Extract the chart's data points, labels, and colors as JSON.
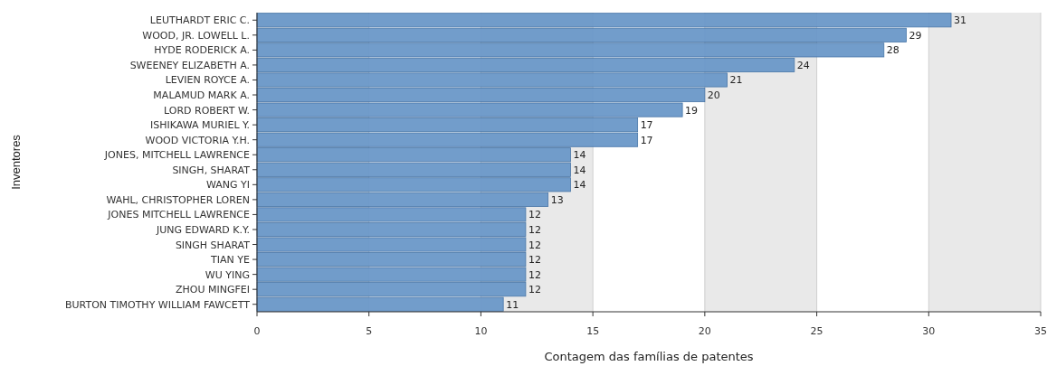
{
  "chart_data": {
    "type": "bar",
    "orientation": "horizontal",
    "xlabel": "Contagem das famílias de patentes",
    "ylabel": "Inventores",
    "categories": [
      "LEUTHARDT ERIC C.",
      "WOOD, JR. LOWELL L.",
      "HYDE RODERICK A.",
      "SWEENEY ELIZABETH A.",
      "LEVIEN ROYCE A.",
      "MALAMUD MARK A.",
      "LORD ROBERT W.",
      "ISHIKAWA MURIEL Y.",
      "WOOD VICTORIA Y.H.",
      "JONES, MITCHELL LAWRENCE",
      "SINGH, SHARAT",
      "WANG YI",
      "WAHL, CHRISTOPHER LOREN",
      "JONES MITCHELL LAWRENCE",
      "JUNG EDWARD K.Y.",
      "SINGH SHARAT",
      "TIAN YE",
      "WU YING",
      "ZHOU MINGFEI",
      "BURTON TIMOTHY WILLIAM FAWCETT"
    ],
    "values": [
      31,
      29,
      28,
      24,
      21,
      20,
      19,
      17,
      17,
      14,
      14,
      14,
      13,
      12,
      12,
      12,
      12,
      12,
      12,
      11
    ],
    "color": "#6b98c9",
    "xlim": [
      0,
      35
    ],
    "xticks": [
      0,
      5,
      10,
      15,
      20,
      25,
      30,
      35
    ],
    "grid": "x",
    "data_labels": true,
    "bands": [
      {
        "axis": "x",
        "from": 0,
        "to": 5,
        "color": "#e9e9e9"
      },
      {
        "axis": "x",
        "from": 10,
        "to": 15,
        "color": "#e9e9e9"
      },
      {
        "axis": "x",
        "from": 20,
        "to": 25,
        "color": "#e9e9e9"
      },
      {
        "axis": "x",
        "from": 30,
        "to": 35,
        "color": "#e9e9e9"
      }
    ]
  }
}
